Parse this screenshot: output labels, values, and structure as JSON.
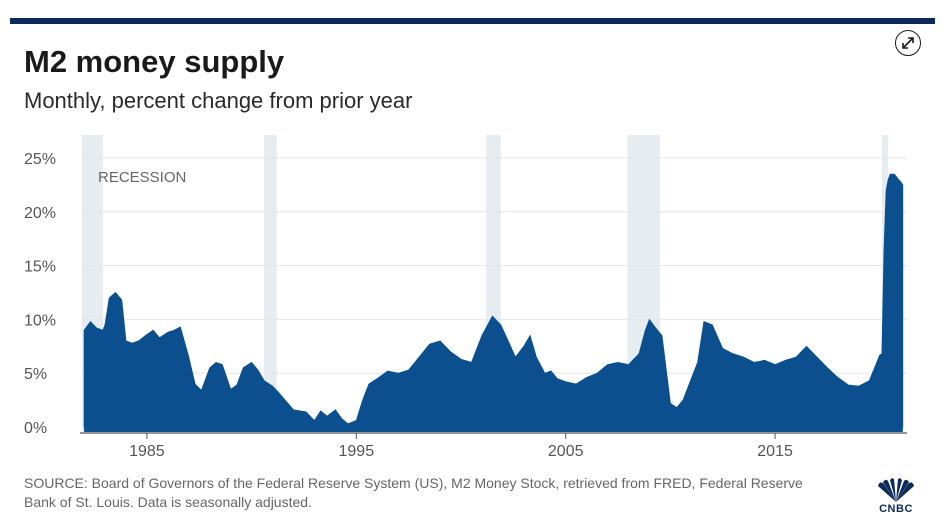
{
  "header": {
    "title": "M2 money supply",
    "subtitle": "Monthly, percent change from prior year"
  },
  "footer": {
    "source": "SOURCE: Board of Governors of the Federal Reserve System (US), M2 Money Stock, retrieved from FRED, Federal Reserve Bank of St. Louis. Data is seasonally adjusted."
  },
  "logo": {
    "text": "CNBC",
    "icon": "cnbc-peacock-icon"
  },
  "expand": {
    "icon": "expand-arrows-icon"
  },
  "colors": {
    "area": "#0c4f8f",
    "recession": "#e7ecf1",
    "top_bar": "#0b2a5a",
    "grid": "#e6e6e6"
  },
  "chart_data": {
    "type": "area",
    "title": "M2 money supply",
    "subtitle": "Monthly, percent change from prior year",
    "xlabel": "",
    "ylabel": "",
    "xlim": [
      1981.9,
      2021.3
    ],
    "ylim": [
      0,
      25
    ],
    "y_ticks": [
      0,
      5,
      10,
      15,
      20,
      25
    ],
    "y_tick_labels": [
      "0%",
      "5%",
      "10%",
      "15%",
      "20%",
      "25%"
    ],
    "x_ticks": [
      1985,
      1995,
      2005,
      2015
    ],
    "x_tick_labels": [
      "1985",
      "1995",
      "2005",
      "2015"
    ],
    "grid": "horizontal",
    "recession_label": "RECESSION",
    "recessions": [
      [
        1981.6,
        1982.9
      ],
      [
        1990.6,
        1991.2
      ],
      [
        2001.2,
        2001.9
      ],
      [
        2007.95,
        2009.5
      ],
      [
        2020.1,
        2020.4
      ]
    ],
    "series": [
      {
        "x": [
          1982.0,
          1982.3,
          1982.6,
          1982.9,
          1983.0,
          1983.2,
          1983.5,
          1983.8,
          1984.0,
          1984.3,
          1984.6,
          1985.0,
          1985.3,
          1985.6,
          1986.0,
          1986.3,
          1986.6,
          1987.0,
          1987.3,
          1987.6,
          1988.0,
          1988.3,
          1988.6,
          1989.0,
          1989.3,
          1989.6,
          1990.0,
          1990.3,
          1990.6,
          1991.0,
          1991.3,
          1991.6,
          1992.0,
          1992.3,
          1992.6,
          1993.0,
          1993.3,
          1993.6,
          1994.0,
          1994.3,
          1994.6,
          1995.0,
          1995.3,
          1995.6,
          1996.0,
          1996.5,
          1997.0,
          1997.5,
          1998.0,
          1998.5,
          1999.0,
          1999.5,
          2000.0,
          2000.5,
          2001.0,
          2001.5,
          2001.9,
          2002.3,
          2002.6,
          2003.0,
          2003.3,
          2003.6,
          2004.0,
          2004.3,
          2004.6,
          2005.0,
          2005.5,
          2006.0,
          2006.5,
          2007.0,
          2007.5,
          2008.0,
          2008.5,
          2008.8,
          2009.0,
          2009.3,
          2009.6,
          2010.0,
          2010.3,
          2010.6,
          2011.0,
          2011.3,
          2011.6,
          2012.0,
          2012.5,
          2013.0,
          2013.5,
          2014.0,
          2014.5,
          2015.0,
          2015.5,
          2016.0,
          2016.5,
          2017.0,
          2017.5,
          2018.0,
          2018.5,
          2019.0,
          2019.5,
          2020.0,
          2020.1,
          2020.2,
          2020.3,
          2020.4,
          2020.5,
          2020.7,
          2020.9,
          2021.0,
          2021.1
        ],
        "values": [
          9.0,
          9.8,
          9.2,
          9.0,
          9.5,
          12.0,
          12.5,
          11.8,
          8.0,
          7.8,
          8.0,
          8.6,
          9.0,
          8.3,
          8.8,
          9.0,
          9.3,
          6.5,
          4.0,
          3.4,
          5.5,
          6.0,
          5.8,
          3.5,
          3.9,
          5.5,
          6.0,
          5.3,
          4.3,
          3.8,
          3.2,
          2.5,
          1.6,
          1.5,
          1.4,
          0.6,
          1.5,
          1.0,
          1.6,
          0.8,
          0.3,
          0.6,
          2.5,
          4.0,
          4.5,
          5.2,
          5.0,
          5.3,
          6.5,
          7.7,
          8.0,
          7.0,
          6.3,
          6.0,
          8.5,
          10.3,
          9.5,
          7.8,
          6.5,
          7.5,
          8.5,
          6.5,
          5.0,
          5.2,
          4.5,
          4.2,
          4.0,
          4.6,
          5.0,
          5.8,
          6.0,
          5.8,
          6.8,
          9.0,
          10.0,
          9.2,
          8.5,
          2.2,
          1.8,
          2.5,
          4.5,
          6.0,
          9.8,
          9.5,
          7.3,
          6.8,
          6.5,
          6.0,
          6.2,
          5.8,
          6.2,
          6.5,
          7.5,
          6.5,
          5.5,
          4.6,
          3.9,
          3.8,
          4.3,
          6.7,
          6.8,
          16.5,
          22.0,
          23.0,
          23.5,
          23.5,
          23.0,
          22.8,
          22.5
        ]
      }
    ]
  }
}
